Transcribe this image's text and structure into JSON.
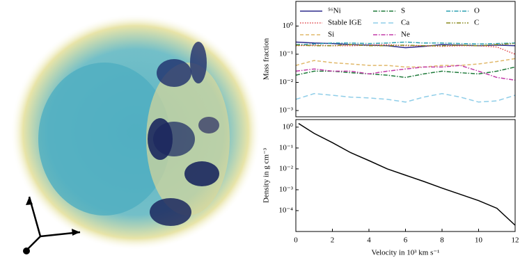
{
  "chart_data": [
    {
      "type": "line",
      "ylabel": "Mass fraction",
      "log_y": true,
      "legend": "upper center",
      "legend_ncol": 3,
      "x": [
        0,
        1,
        2,
        3,
        4,
        5,
        6,
        7,
        8,
        9,
        10,
        11,
        12
      ],
      "xlim": [
        0,
        12
      ],
      "ylim": [
        0.0006,
        7.5
      ],
      "yticks": [
        {
          "value": 1,
          "label": "10⁰"
        },
        {
          "value": 0.1,
          "label": "10⁻¹"
        },
        {
          "value": 0.01,
          "label": "10⁻²"
        },
        {
          "value": 0.001,
          "label": "10⁻³"
        }
      ],
      "series": [
        {
          "name": "⁵⁶Ni",
          "color": "#2b2a8c",
          "linestyle": "solid",
          "values": [
            0.27,
            0.25,
            0.24,
            0.22,
            0.21,
            0.2,
            0.17,
            0.19,
            0.22,
            0.21,
            0.2,
            0.21,
            0.2
          ]
        },
        {
          "name": "Stable IGE",
          "color": "#e0454b",
          "linestyle": "dotted",
          "values": [
            0.2,
            0.21,
            0.2,
            0.2,
            0.21,
            0.22,
            0.2,
            0.2,
            0.19,
            0.2,
            0.2,
            0.18,
            0.1
          ]
        },
        {
          "name": "Si",
          "color": "#e0b86a",
          "linestyle": "dashed",
          "values": [
            0.04,
            0.06,
            0.05,
            0.045,
            0.04,
            0.04,
            0.035,
            0.035,
            0.04,
            0.04,
            0.045,
            0.055,
            0.07
          ]
        },
        {
          "name": "S",
          "color": "#1e7a3a",
          "linestyle": "dashdot",
          "values": [
            0.018,
            0.025,
            0.025,
            0.022,
            0.02,
            0.018,
            0.015,
            0.02,
            0.025,
            0.022,
            0.02,
            0.025,
            0.035
          ]
        },
        {
          "name": "Ca",
          "color": "#8ecde8",
          "linestyle": "longdash",
          "values": [
            0.0025,
            0.004,
            0.0035,
            0.003,
            0.0028,
            0.0025,
            0.002,
            0.003,
            0.004,
            0.003,
            0.002,
            0.0022,
            0.0035
          ]
        },
        {
          "name": "Ne",
          "color": "#c23aa8",
          "linestyle": "dashdot",
          "values": [
            0.025,
            0.03,
            0.025,
            0.025,
            0.02,
            0.025,
            0.03,
            0.035,
            0.035,
            0.04,
            0.025,
            0.015,
            0.012
          ]
        },
        {
          "name": "O",
          "color": "#2aa0b0",
          "linestyle": "dashdot",
          "values": [
            0.22,
            0.23,
            0.25,
            0.25,
            0.24,
            0.25,
            0.27,
            0.25,
            0.25,
            0.24,
            0.23,
            0.24,
            0.25
          ]
        },
        {
          "name": "C",
          "color": "#8a8a1e",
          "linestyle": "dashdotdot",
          "values": [
            0.21,
            0.2,
            0.2,
            0.22,
            0.2,
            0.2,
            0.21,
            0.2,
            0.2,
            0.21,
            0.2,
            0.22,
            0.24
          ]
        }
      ]
    },
    {
      "type": "line",
      "ylabel": "Density in g cm⁻³",
      "xlabel": "Velocity in 10³ km s⁻¹",
      "log_y": true,
      "x": [
        0.15,
        1,
        2,
        3,
        4,
        5,
        6,
        7,
        8,
        9,
        10,
        11,
        12
      ],
      "values": [
        1.5,
        0.5,
        0.18,
        0.06,
        0.025,
        0.01,
        0.005,
        0.0025,
        0.0012,
        0.0006,
        0.0003,
        0.00013,
        2e-05
      ],
      "color": "#000000",
      "linestyle": "solid",
      "xlim": [
        0,
        12
      ],
      "ylim": [
        1e-05,
        2.3
      ],
      "xticks": [
        0,
        2,
        4,
        6,
        8,
        10,
        12
      ],
      "yticks": [
        {
          "value": 1,
          "label": "10⁰"
        },
        {
          "value": 0.1,
          "label": "10⁻¹"
        },
        {
          "value": 0.01,
          "label": "10⁻²"
        },
        {
          "value": 0.001,
          "label": "10⁻³"
        },
        {
          "value": 0.0001,
          "label": "10⁻⁴"
        }
      ]
    }
  ]
}
